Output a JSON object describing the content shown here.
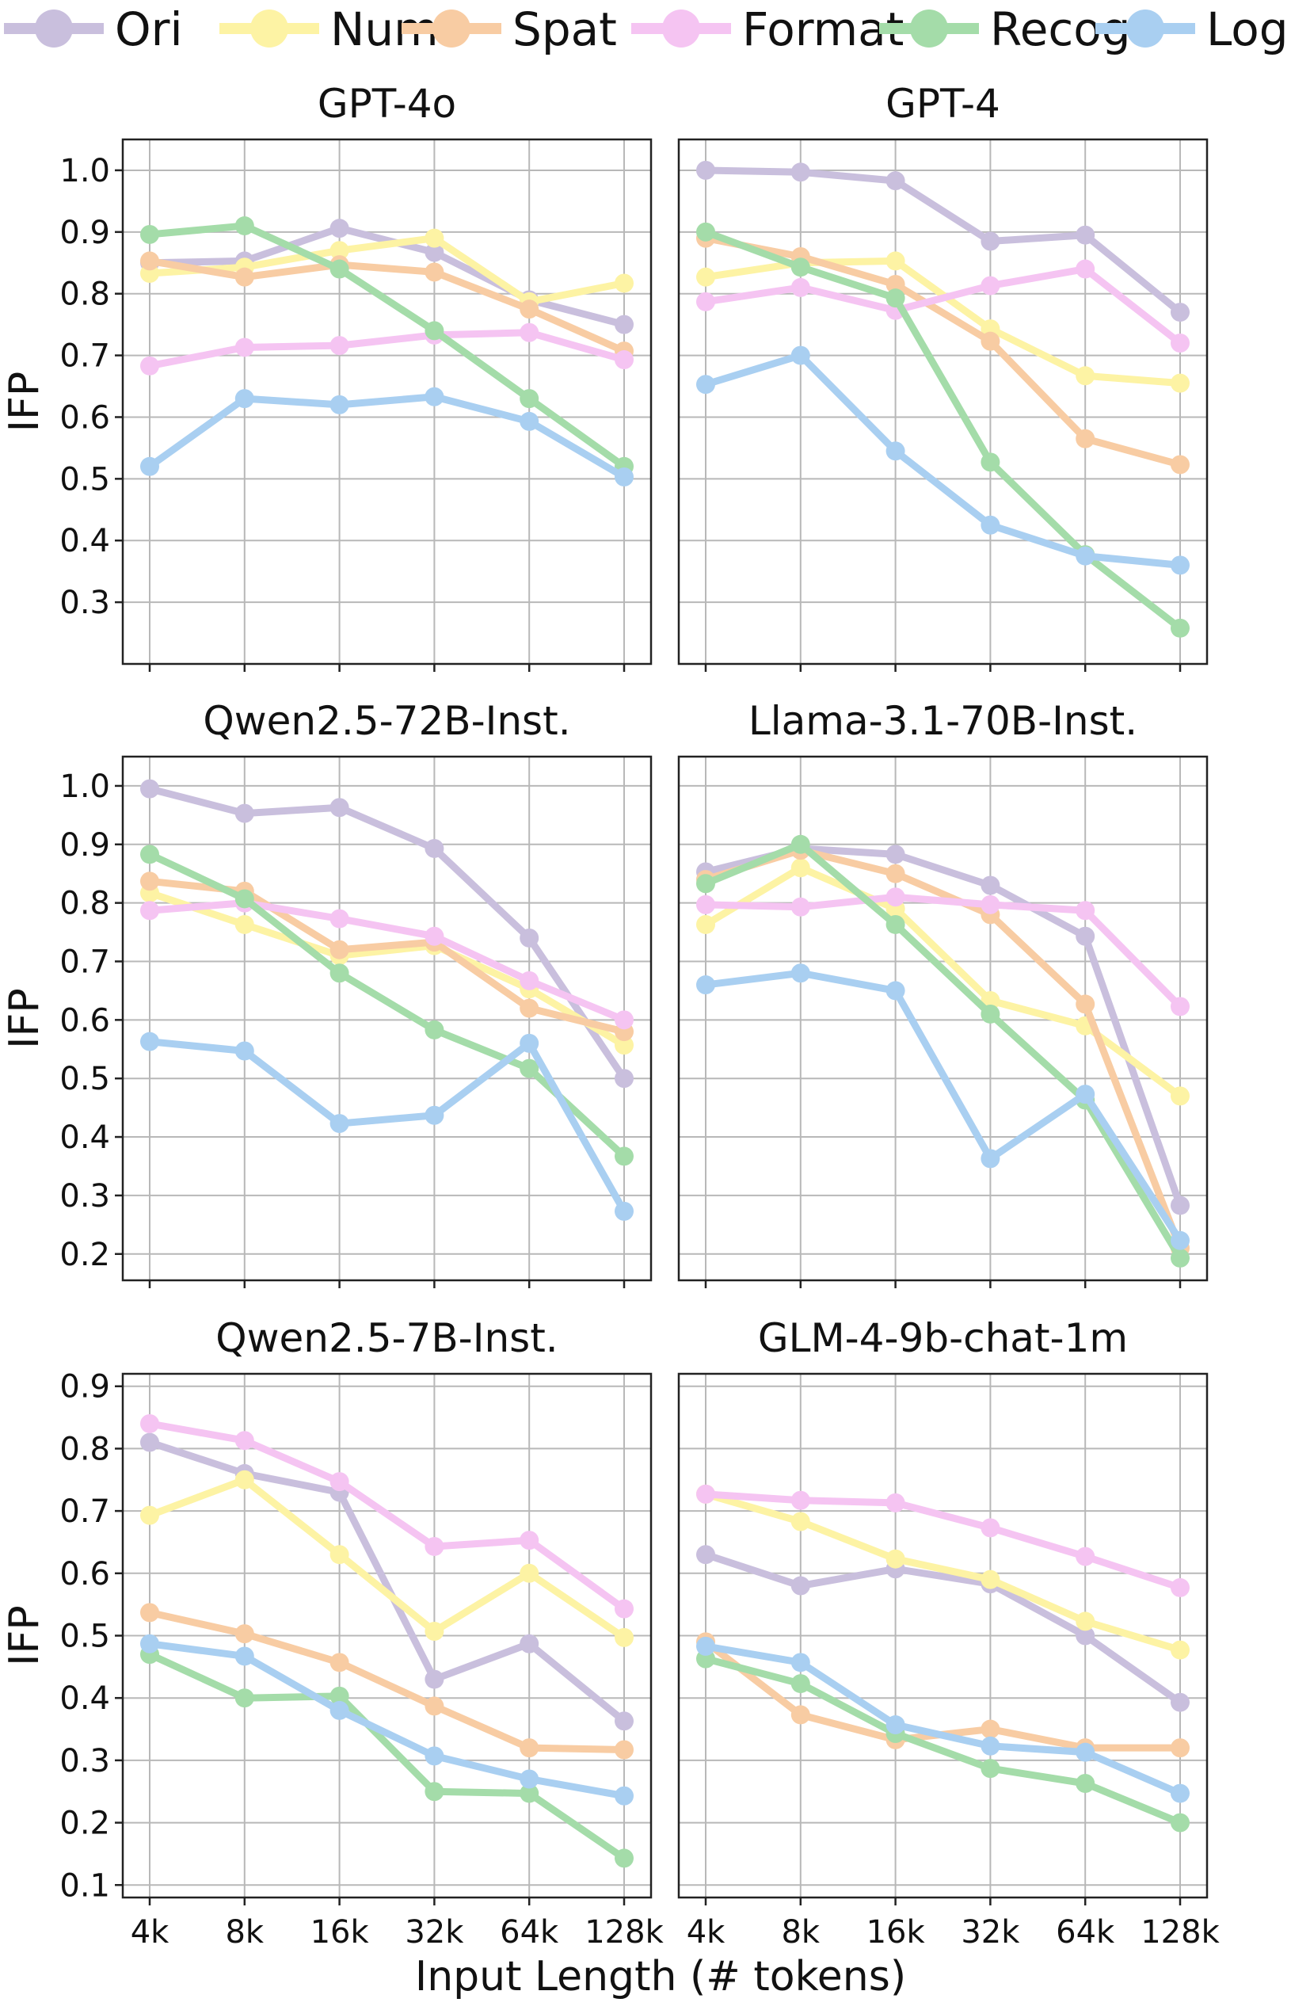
{
  "legend": {
    "position": "top",
    "entries": [
      {
        "name": "Ori",
        "color": "#c9bfdd"
      },
      {
        "name": "Num",
        "color": "#fdf3a4"
      },
      {
        "name": "Spat",
        "color": "#f8cca3"
      },
      {
        "name": "Format",
        "color": "#f5c4f2"
      },
      {
        "name": "Recog",
        "color": "#a4dca9"
      },
      {
        "name": "Logic",
        "color": "#a9cff1"
      }
    ]
  },
  "xlabel": "Input Length (# tokens)",
  "ylabel": "IFP",
  "x_categories": [
    "4k",
    "8k",
    "16k",
    "32k",
    "64k",
    "128k"
  ],
  "chart_data": [
    {
      "type": "line",
      "title": "GPT-4o",
      "ylabel": "IFP",
      "ylim": [
        0.2,
        1.05
      ],
      "yticks": [
        "0.3",
        "0.4",
        "0.5",
        "0.6",
        "0.7",
        "0.8",
        "0.9",
        "1.0"
      ],
      "grid": true,
      "categories": [
        "4k",
        "8k",
        "16k",
        "32k",
        "64k",
        "128k"
      ],
      "series": [
        {
          "name": "Ori",
          "values": [
            0.85,
            0.853,
            0.906,
            0.867,
            0.79,
            0.75
          ]
        },
        {
          "name": "Num",
          "values": [
            0.833,
            0.843,
            0.87,
            0.89,
            0.787,
            0.817
          ]
        },
        {
          "name": "Spat",
          "values": [
            0.853,
            0.827,
            0.847,
            0.835,
            0.775,
            0.707
          ]
        },
        {
          "name": "Format",
          "values": [
            0.683,
            0.713,
            0.716,
            0.733,
            0.737,
            0.693
          ]
        },
        {
          "name": "Recog",
          "values": [
            0.896,
            0.91,
            0.84,
            0.74,
            0.63,
            0.52
          ]
        },
        {
          "name": "Logic",
          "values": [
            0.52,
            0.63,
            0.62,
            0.633,
            0.593,
            0.503
          ]
        }
      ]
    },
    {
      "type": "line",
      "title": "GPT-4",
      "ylabel": "",
      "ylim": [
        0.2,
        1.05
      ],
      "yticks": [],
      "grid": true,
      "categories": [
        "4k",
        "8k",
        "16k",
        "32k",
        "64k",
        "128k"
      ],
      "series": [
        {
          "name": "Ori",
          "values": [
            1.0,
            0.997,
            0.983,
            0.885,
            0.895,
            0.77
          ]
        },
        {
          "name": "Num",
          "values": [
            0.827,
            0.85,
            0.853,
            0.743,
            0.667,
            0.655
          ]
        },
        {
          "name": "Spat",
          "values": [
            0.89,
            0.86,
            0.815,
            0.723,
            0.565,
            0.523
          ]
        },
        {
          "name": "Format",
          "values": [
            0.787,
            0.81,
            0.773,
            0.813,
            0.84,
            0.72
          ]
        },
        {
          "name": "Recog",
          "values": [
            0.9,
            0.843,
            0.793,
            0.527,
            0.377,
            0.258
          ]
        },
        {
          "name": "Logic",
          "values": [
            0.653,
            0.7,
            0.545,
            0.425,
            0.375,
            0.36
          ]
        }
      ]
    },
    {
      "type": "line",
      "title": "Qwen2.5-72B-Inst.",
      "ylabel": "IFP",
      "ylim": [
        0.155,
        1.05
      ],
      "yticks": [
        "0.2",
        "0.3",
        "0.4",
        "0.5",
        "0.6",
        "0.7",
        "0.8",
        "0.9",
        "1.0"
      ],
      "grid": true,
      "categories": [
        "4k",
        "8k",
        "16k",
        "32k",
        "64k",
        "128k"
      ],
      "series": [
        {
          "name": "Ori",
          "values": [
            0.995,
            0.953,
            0.963,
            0.893,
            0.74,
            0.5
          ]
        },
        {
          "name": "Num",
          "values": [
            0.817,
            0.763,
            0.71,
            0.727,
            0.653,
            0.557
          ]
        },
        {
          "name": "Spat",
          "values": [
            0.837,
            0.82,
            0.72,
            0.733,
            0.62,
            0.58
          ]
        },
        {
          "name": "Format",
          "values": [
            0.787,
            0.8,
            0.773,
            0.743,
            0.667,
            0.6
          ]
        },
        {
          "name": "Recog",
          "values": [
            0.883,
            0.807,
            0.68,
            0.583,
            0.517,
            0.367
          ]
        },
        {
          "name": "Logic",
          "values": [
            0.563,
            0.547,
            0.423,
            0.437,
            0.56,
            0.273
          ]
        }
      ]
    },
    {
      "type": "line",
      "title": "Llama-3.1-70B-Inst.",
      "ylabel": "",
      "ylim": [
        0.155,
        1.05
      ],
      "yticks": [],
      "grid": true,
      "categories": [
        "4k",
        "8k",
        "16k",
        "32k",
        "64k",
        "128k"
      ],
      "series": [
        {
          "name": "Ori",
          "values": [
            0.853,
            0.893,
            0.883,
            0.83,
            0.743,
            0.283
          ]
        },
        {
          "name": "Num",
          "values": [
            0.763,
            0.86,
            0.79,
            0.633,
            0.59,
            0.47
          ]
        },
        {
          "name": "Spat",
          "values": [
            0.84,
            0.89,
            0.85,
            0.78,
            0.627,
            0.21
          ]
        },
        {
          "name": "Format",
          "values": [
            0.797,
            0.793,
            0.81,
            0.797,
            0.787,
            0.623
          ]
        },
        {
          "name": "Recog",
          "values": [
            0.833,
            0.9,
            0.763,
            0.61,
            0.463,
            0.193
          ]
        },
        {
          "name": "Logic",
          "values": [
            0.66,
            0.68,
            0.65,
            0.363,
            0.473,
            0.223
          ]
        }
      ]
    },
    {
      "type": "line",
      "title": "Qwen2.5-7B-Inst.",
      "ylabel": "IFP",
      "ylim": [
        0.08,
        0.92
      ],
      "yticks": [
        "0.1",
        "0.2",
        "0.3",
        "0.4",
        "0.5",
        "0.6",
        "0.7",
        "0.8",
        "0.9"
      ],
      "grid": true,
      "categories": [
        "4k",
        "8k",
        "16k",
        "32k",
        "64k",
        "128k"
      ],
      "series": [
        {
          "name": "Ori",
          "values": [
            0.81,
            0.76,
            0.73,
            0.43,
            0.487,
            0.363
          ]
        },
        {
          "name": "Num",
          "values": [
            0.693,
            0.75,
            0.63,
            0.507,
            0.6,
            0.497
          ]
        },
        {
          "name": "Spat",
          "values": [
            0.537,
            0.503,
            0.457,
            0.387,
            0.32,
            0.317
          ]
        },
        {
          "name": "Format",
          "values": [
            0.84,
            0.813,
            0.747,
            0.643,
            0.653,
            0.543
          ]
        },
        {
          "name": "Recog",
          "values": [
            0.47,
            0.4,
            0.403,
            0.25,
            0.247,
            0.143
          ]
        },
        {
          "name": "Logic",
          "values": [
            0.487,
            0.467,
            0.38,
            0.307,
            0.27,
            0.243
          ]
        }
      ]
    },
    {
      "type": "line",
      "title": "GLM-4-9b-chat-1m",
      "ylabel": "",
      "ylim": [
        0.08,
        0.92
      ],
      "yticks": [],
      "grid": true,
      "categories": [
        "4k",
        "8k",
        "16k",
        "32k",
        "64k",
        "128k"
      ],
      "series": [
        {
          "name": "Ori",
          "values": [
            0.63,
            0.58,
            0.607,
            0.583,
            0.5,
            0.393
          ]
        },
        {
          "name": "Num",
          "values": [
            0.727,
            0.683,
            0.623,
            0.59,
            0.523,
            0.477
          ]
        },
        {
          "name": "Spat",
          "values": [
            0.49,
            0.373,
            0.333,
            0.35,
            0.32,
            0.32
          ]
        },
        {
          "name": "Format",
          "values": [
            0.727,
            0.717,
            0.713,
            0.673,
            0.627,
            0.577
          ]
        },
        {
          "name": "Recog",
          "values": [
            0.463,
            0.423,
            0.343,
            0.287,
            0.263,
            0.2
          ]
        },
        {
          "name": "Logic",
          "values": [
            0.483,
            0.457,
            0.357,
            0.323,
            0.313,
            0.247
          ]
        }
      ]
    }
  ]
}
